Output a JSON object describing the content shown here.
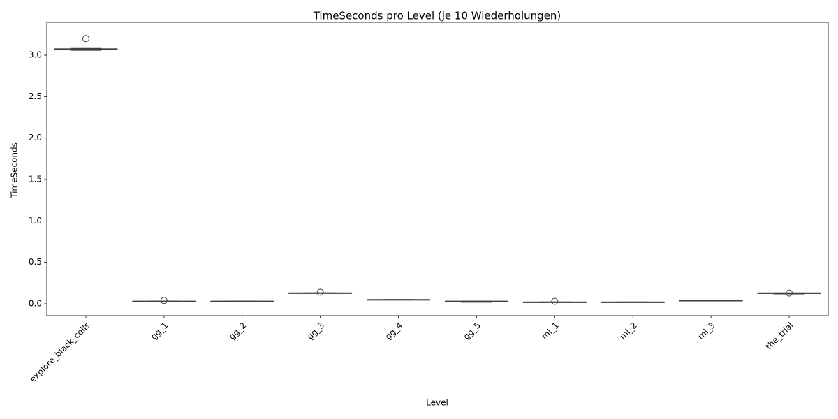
{
  "chart_data": {
    "type": "box",
    "title": "TimeSeconds pro Level (je 10 Wiederholungen)",
    "x_label": "Level",
    "y_label": "TimeSeconds",
    "categories": [
      "explore_black_cells",
      "gg_1",
      "gg_2",
      "gg_3",
      "gg_4",
      "gg_5",
      "ml_1",
      "ml_2",
      "ml_3",
      "the_trial"
    ],
    "boxes": [
      {
        "min": 3.06,
        "q1": 3.065,
        "median": 3.07,
        "q3": 3.075,
        "max": 3.08,
        "outliers": [
          3.2
        ]
      },
      {
        "min": 0.03,
        "q1": 0.03,
        "median": 0.03,
        "q3": 0.03,
        "max": 0.03,
        "outliers": [
          0.04
        ]
      },
      {
        "min": 0.03,
        "q1": 0.03,
        "median": 0.03,
        "q3": 0.03,
        "max": 0.03,
        "outliers": []
      },
      {
        "min": 0.13,
        "q1": 0.13,
        "median": 0.13,
        "q3": 0.13,
        "max": 0.13,
        "outliers": [
          0.14
        ]
      },
      {
        "min": 0.05,
        "q1": 0.05,
        "median": 0.05,
        "q3": 0.05,
        "max": 0.05,
        "outliers": []
      },
      {
        "min": 0.02,
        "q1": 0.025,
        "median": 0.03,
        "q3": 0.03,
        "max": 0.03,
        "outliers": []
      },
      {
        "min": 0.02,
        "q1": 0.02,
        "median": 0.02,
        "q3": 0.02,
        "max": 0.02,
        "outliers": [
          0.03
        ]
      },
      {
        "min": 0.02,
        "q1": 0.02,
        "median": 0.02,
        "q3": 0.02,
        "max": 0.02,
        "outliers": []
      },
      {
        "min": 0.04,
        "q1": 0.04,
        "median": 0.04,
        "q3": 0.04,
        "max": 0.04,
        "outliers": []
      },
      {
        "min": 0.12,
        "q1": 0.125,
        "median": 0.13,
        "q3": 0.13,
        "max": 0.13,
        "outliers": [
          0.13
        ]
      }
    ],
    "color": "#3274a1",
    "ylim": [
      -0.143,
      3.396
    ],
    "yticks": [
      {
        "value": 0,
        "label": "0.0"
      },
      {
        "value": 0.5,
        "label": "0.5"
      },
      {
        "value": 1,
        "label": "1.0"
      },
      {
        "value": 1.5,
        "label": "1.5"
      },
      {
        "value": 2,
        "label": "2.0"
      },
      {
        "value": 2.5,
        "label": "2.5"
      },
      {
        "value": 3,
        "label": "3.0"
      }
    ]
  }
}
